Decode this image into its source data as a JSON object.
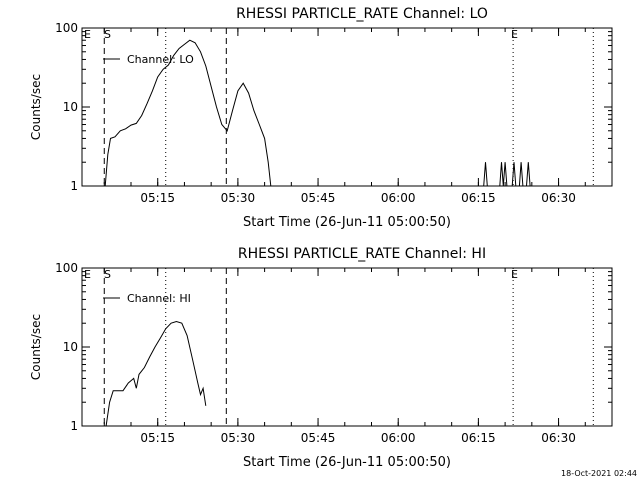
{
  "chart_data": [
    {
      "type": "line",
      "title": "RHESSI PARTICLE_RATE Channel: LO",
      "xlabel": "Start Time (26-Jun-11 05:00:50)",
      "ylabel": "Counts/sec",
      "yscale": "log",
      "ylim": [
        1,
        100
      ],
      "xlim": [
        "05:00:50",
        "06:40:00"
      ],
      "x_ticks": [
        "05:15",
        "05:30",
        "05:45",
        "06:00",
        "06:15",
        "06:30"
      ],
      "y_ticks": [
        "1",
        "10",
        "100"
      ],
      "markers": [
        {
          "label": "S",
          "time": "05:05:00",
          "style": "dashed"
        },
        {
          "label": "",
          "time": "05:16:30",
          "style": "dotted"
        },
        {
          "label": "",
          "time": "05:27:50",
          "style": "dashed"
        },
        {
          "label": "E",
          "time": "06:21:30",
          "style": "dotted"
        },
        {
          "label": "",
          "time": "06:36:30",
          "style": "dotted"
        }
      ],
      "corner_label": "E",
      "series": [
        {
          "name": "Channel: LO",
          "x": [
            "05:05:10",
            "05:05:40",
            "05:06:10",
            "05:07:00",
            "05:08:00",
            "05:09:00",
            "05:10:00",
            "05:11:00",
            "05:12:00",
            "05:13:00",
            "05:14:00",
            "05:15:00",
            "05:16:00",
            "05:17:00",
            "05:18:00",
            "05:19:00",
            "05:20:00",
            "05:21:00",
            "05:22:00",
            "05:23:00",
            "05:24:00",
            "05:25:00",
            "05:26:00",
            "05:27:00",
            "05:28:00",
            "05:29:00",
            "05:30:00",
            "05:31:00",
            "05:32:00",
            "05:33:00",
            "05:34:00",
            "05:35:00",
            "05:35:40",
            "05:36:10"
          ],
          "y": [
            1.0,
            2.5,
            4.0,
            4.2,
            5.0,
            5.3,
            5.9,
            6.2,
            7.8,
            11,
            16,
            24,
            30,
            34,
            45,
            55,
            62,
            70,
            65,
            50,
            33,
            18,
            10,
            6,
            5,
            9,
            16,
            20,
            15,
            9,
            6,
            4,
            2,
            1.0
          ]
        },
        {
          "name": "",
          "x": [
            "06:16:00",
            "06:16:20",
            "06:16:40",
            "06:19:00",
            "06:19:20",
            "06:19:40",
            "06:20:00",
            "06:20:20",
            "06:21:20",
            "06:21:40",
            "06:22:00",
            "06:22:40",
            "06:23:00",
            "06:23:20",
            "06:24:00",
            "06:24:20",
            "06:24:40"
          ],
          "y": [
            1.0,
            2.0,
            1.0,
            1.0,
            2.0,
            1.0,
            2.0,
            1.0,
            1.0,
            2.0,
            1.0,
            1.0,
            2.0,
            1.0,
            1.0,
            2.0,
            1.0
          ]
        }
      ]
    },
    {
      "type": "line",
      "title": "RHESSI PARTICLE_RATE Channel: HI",
      "xlabel": "Start Time (26-Jun-11 05:00:50)",
      "ylabel": "Counts/sec",
      "yscale": "log",
      "ylim": [
        1,
        100
      ],
      "xlim": [
        "05:00:50",
        "06:40:00"
      ],
      "x_ticks": [
        "05:15",
        "05:30",
        "05:45",
        "06:00",
        "06:15",
        "06:30"
      ],
      "y_ticks": [
        "1",
        "10",
        "100"
      ],
      "markers": [
        {
          "label": "S",
          "time": "05:05:00",
          "style": "dashed"
        },
        {
          "label": "",
          "time": "05:16:30",
          "style": "dotted"
        },
        {
          "label": "",
          "time": "05:27:50",
          "style": "dashed"
        },
        {
          "label": "E",
          "time": "06:21:30",
          "style": "dotted"
        },
        {
          "label": "",
          "time": "06:36:30",
          "style": "dotted"
        }
      ],
      "corner_label": "E",
      "series": [
        {
          "name": "Channel: HI",
          "x": [
            "05:05:20",
            "05:06:00",
            "05:06:40",
            "05:07:30",
            "05:08:30",
            "05:09:30",
            "05:10:30",
            "05:11:00",
            "05:11:30",
            "05:12:30",
            "05:13:30",
            "05:14:30",
            "05:15:30",
            "05:16:30",
            "05:17:30",
            "05:18:30",
            "05:19:30",
            "05:20:30",
            "05:21:30",
            "05:22:00",
            "05:22:30",
            "05:23:00",
            "05:23:30",
            "05:24:00"
          ],
          "y": [
            1.0,
            2.0,
            2.8,
            2.8,
            2.8,
            3.5,
            4.0,
            3.0,
            4.5,
            5.5,
            7.5,
            10,
            13,
            17,
            20,
            21,
            20,
            14,
            7,
            5,
            3.5,
            2.5,
            3.0,
            1.8
          ]
        }
      ]
    }
  ],
  "footer": {
    "timestamp": "18-Oct-2021 02:44"
  }
}
